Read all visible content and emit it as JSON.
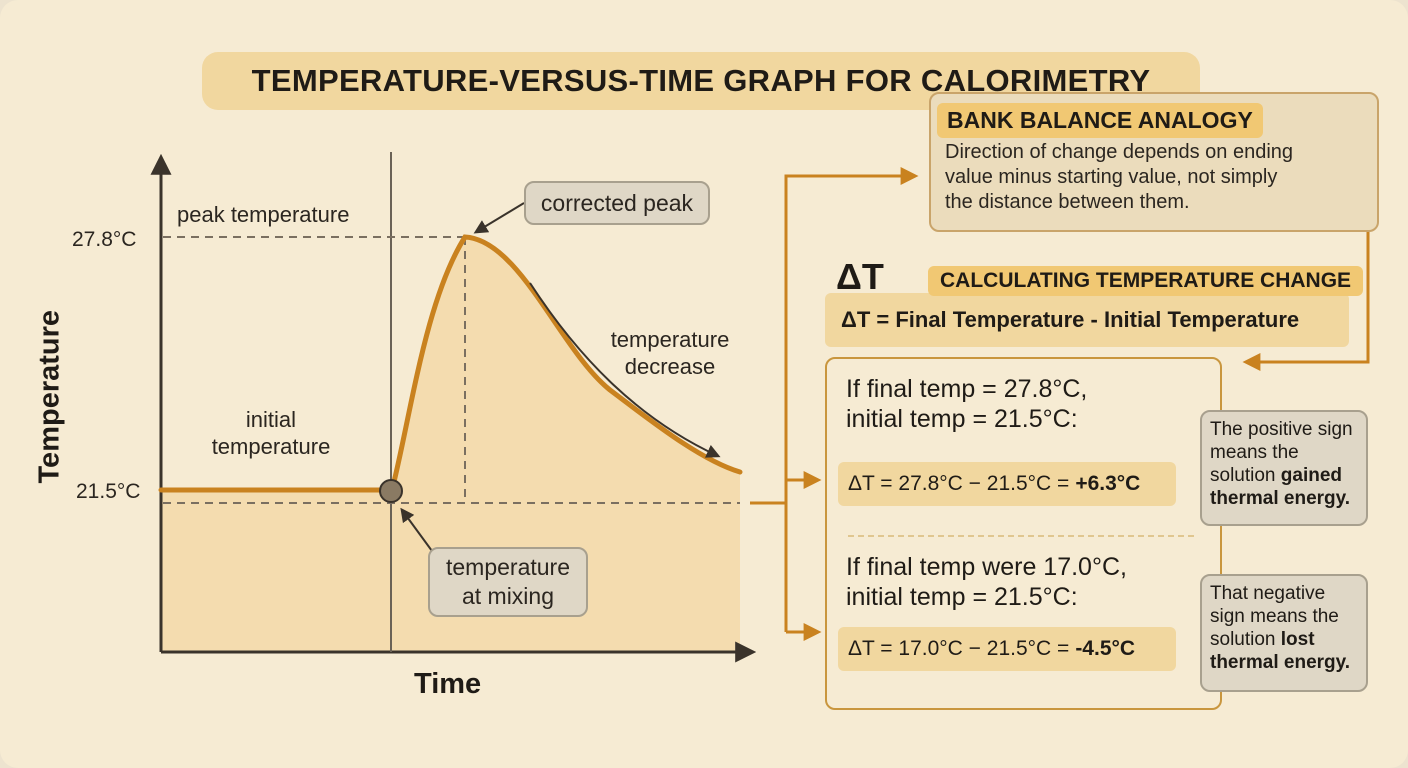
{
  "title": "TEMPERATURE-VERSUS-TIME GRAPH FOR CALORIMETRY",
  "graph": {
    "y_axis_label": "Temperature",
    "x_axis_label": "Time",
    "y_tick_peak": "27.8°C",
    "y_tick_initial": "21.5°C",
    "labels": {
      "peak_temperature": "peak temperature",
      "initial_temperature_line1": "initial",
      "initial_temperature_line2": "temperature",
      "temperature_decrease_line1": "temperature",
      "temperature_decrease_line2": "decrease"
    },
    "callouts": {
      "corrected_peak": "corrected peak",
      "mixing_line1": "temperature",
      "mixing_line2": "at mixing"
    },
    "values": {
      "initial_c": 21.5,
      "peak_c": 27.8
    }
  },
  "analogy": {
    "title": "BANK BALANCE ANALOGY",
    "line1": "Direction of change depends on ending",
    "line2": "value minus starting value, not simply",
    "line3": "the distance between them."
  },
  "calculation": {
    "symbol": "ΔT",
    "title": "CALCULATING TEMPERATURE CHANGE",
    "formula": "ΔT = Final Temperature - Initial Temperature"
  },
  "example1": {
    "line1": "If final temp = 27.8°C,",
    "line2": "initial temp = 21.5°C:",
    "equation": "ΔT = 27.8°C − 21.5°C =",
    "result": "+6.3°C",
    "note_pre": "The positive sign means the solution",
    "note_bold": "gained thermal energy.",
    "note_post": ""
  },
  "example2": {
    "line1": "If final temp were 17.0°C,",
    "line2": "initial temp = 21.5°C:",
    "equation": "ΔT = 17.0°C − 21.5°C =",
    "result": "-4.5°C",
    "note_pre": "That negative sign means the solution",
    "note_bold": "lost thermal energy.",
    "note_post": ""
  },
  "colors": {
    "curve": "#c9821f",
    "fill": "#f3d9a8",
    "accent": "#f1c873",
    "callout_bg": "#dfd7c6"
  }
}
